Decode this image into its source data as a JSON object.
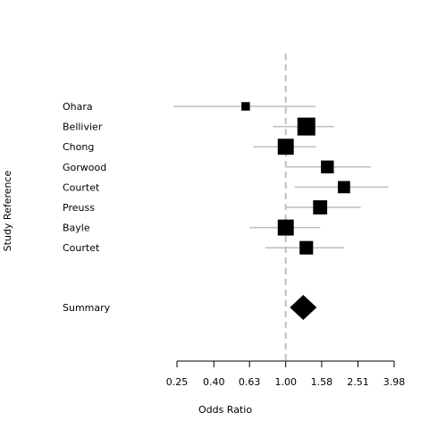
{
  "chart_data": {
    "type": "forest",
    "ylabel": "Study Reference",
    "xlabel": "Odds Ratio",
    "x_scale": "log",
    "xlim": [
      0.25,
      3.98
    ],
    "x_ticks": [
      0.25,
      0.4,
      0.63,
      1.0,
      1.58,
      2.51,
      3.98
    ],
    "x_tick_labels": [
      "0.25",
      "0.40",
      "0.63",
      "1.00",
      "1.58",
      "2.51",
      "3.98"
    ],
    "reference_line": 1.0,
    "studies": [
      {
        "label": "Ohara",
        "or": 0.6,
        "ci": [
          0.24,
          1.46
        ],
        "weight": 0.25
      },
      {
        "label": "Bellivier",
        "or": 1.3,
        "ci": [
          0.85,
          1.85
        ],
        "weight": 1.0
      },
      {
        "label": "Chong",
        "or": 1.0,
        "ci": [
          0.66,
          1.47
        ],
        "weight": 0.85
      },
      {
        "label": "Gorwood",
        "or": 1.7,
        "ci": [
          1.0,
          2.95
        ],
        "weight": 0.6
      },
      {
        "label": "Courtet",
        "or": 2.1,
        "ci": [
          1.12,
          3.7
        ],
        "weight": 0.55
      },
      {
        "label": "Preuss",
        "or": 1.55,
        "ci": [
          1.0,
          2.6
        ],
        "weight": 0.7
      },
      {
        "label": "Bayle",
        "or": 1.0,
        "ci": [
          0.63,
          1.55
        ],
        "weight": 0.85
      },
      {
        "label": "Courtet",
        "or": 1.3,
        "ci": [
          0.77,
          2.1
        ],
        "weight": 0.65
      }
    ],
    "summary": {
      "label": "Summary",
      "or": 1.25,
      "ci": [
        1.08,
        1.45
      ]
    },
    "colors": {
      "marker": "#000000",
      "ci_line": "#bebebe",
      "ref_line": "#bebebe"
    }
  }
}
